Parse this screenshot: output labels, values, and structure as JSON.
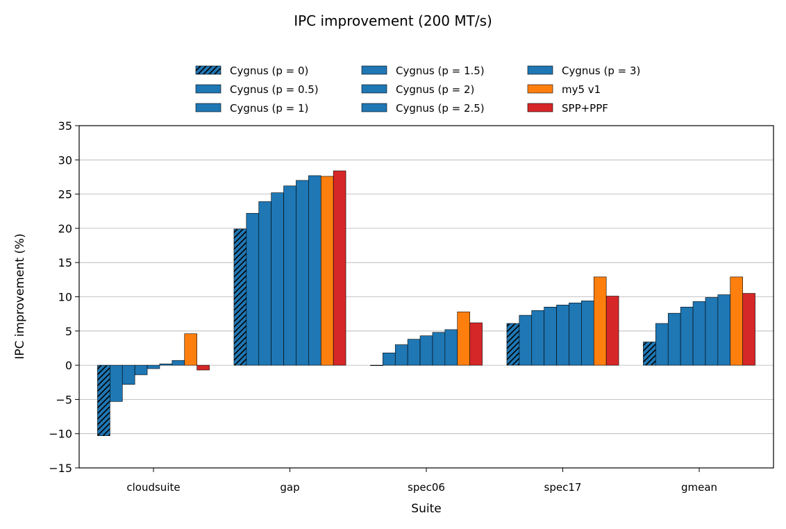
{
  "chart_data": {
    "type": "bar",
    "title": "IPC improvement (200 MT/s)",
    "xlabel": "Suite",
    "ylabel": "IPC improvement (%)",
    "ylim": [
      -15,
      35
    ],
    "yticks": [
      -15,
      -10,
      -5,
      0,
      5,
      10,
      15,
      20,
      25,
      30,
      35
    ],
    "ytick_labels": [
      "−15",
      "−10",
      "−5",
      "0",
      "5",
      "10",
      "15",
      "20",
      "25",
      "30",
      "35"
    ],
    "grid": "y",
    "legend_position": "top-center",
    "categories": [
      "cloudsuite",
      "gap",
      "spec06",
      "spec17",
      "gmean"
    ],
    "series": [
      {
        "name": "Cygnus (p = 0)",
        "color": "#1f77b4",
        "hatch": true,
        "values": [
          -10.3,
          19.9,
          0.0,
          6.1,
          3.4
        ]
      },
      {
        "name": "Cygnus (p = 0.5)",
        "color": "#1f77b4",
        "hatch": false,
        "values": [
          -5.3,
          22.2,
          1.8,
          7.3,
          6.1
        ]
      },
      {
        "name": "Cygnus (p = 1)",
        "color": "#1f77b4",
        "hatch": false,
        "values": [
          -2.8,
          23.9,
          3.0,
          8.0,
          7.6
        ]
      },
      {
        "name": "Cygnus (p = 1.5)",
        "color": "#1f77b4",
        "hatch": false,
        "values": [
          -1.4,
          25.2,
          3.8,
          8.5,
          8.5
        ]
      },
      {
        "name": "Cygnus (p = 2)",
        "color": "#1f77b4",
        "hatch": false,
        "values": [
          -0.5,
          26.2,
          4.3,
          8.8,
          9.3
        ]
      },
      {
        "name": "Cygnus (p = 2.5)",
        "color": "#1f77b4",
        "hatch": false,
        "values": [
          0.2,
          27.0,
          4.8,
          9.1,
          9.9
        ]
      },
      {
        "name": "Cygnus (p = 3)",
        "color": "#1f77b4",
        "hatch": false,
        "values": [
          0.7,
          27.7,
          5.2,
          9.4,
          10.3
        ]
      },
      {
        "name": "my5 v1",
        "color": "#ff7f0e",
        "hatch": false,
        "values": [
          4.6,
          27.6,
          7.8,
          12.9,
          12.9
        ]
      },
      {
        "name": "SPP+PPF",
        "color": "#d62728",
        "hatch": false,
        "values": [
          -0.7,
          28.4,
          6.2,
          10.1,
          10.5
        ]
      }
    ]
  }
}
